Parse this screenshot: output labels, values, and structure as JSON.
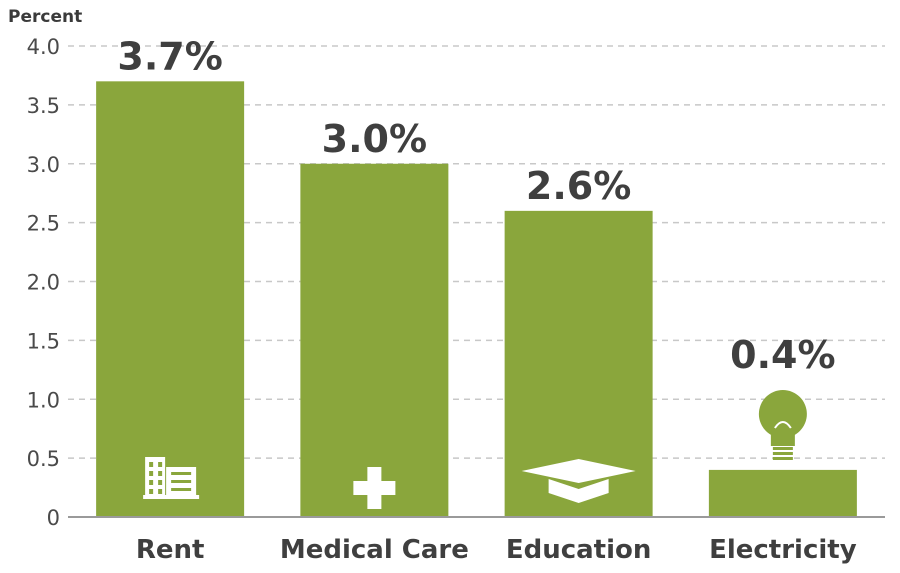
{
  "chart_data": {
    "type": "bar",
    "ylabel": "Percent",
    "categories": [
      "Rent",
      "Medical Care",
      "Education",
      "Electricity"
    ],
    "values": [
      3.7,
      3.0,
      2.6,
      0.4
    ],
    "value_labels": [
      "3.7%",
      "3.0%",
      "2.6%",
      "0.4%"
    ],
    "icons": [
      "building-icon",
      "medical-cross-icon",
      "graduation-cap-icon",
      "lightbulb-icon"
    ],
    "yticks": [
      {
        "value": 0,
        "label": "0"
      },
      {
        "value": 0.5,
        "label": "0.5"
      },
      {
        "value": 1.0,
        "label": "1.0"
      },
      {
        "value": 1.5,
        "label": "1.5"
      },
      {
        "value": 2.0,
        "label": "2.0"
      },
      {
        "value": 2.5,
        "label": "2.5"
      },
      {
        "value": 3.0,
        "label": "3.0"
      },
      {
        "value": 3.5,
        "label": "3.5"
      },
      {
        "value": 4.0,
        "label": "4.0"
      }
    ],
    "ylim": [
      0,
      4.0
    ],
    "grid": true,
    "colors": {
      "bar": "#8aa63c",
      "icon": "#ffffff"
    }
  }
}
